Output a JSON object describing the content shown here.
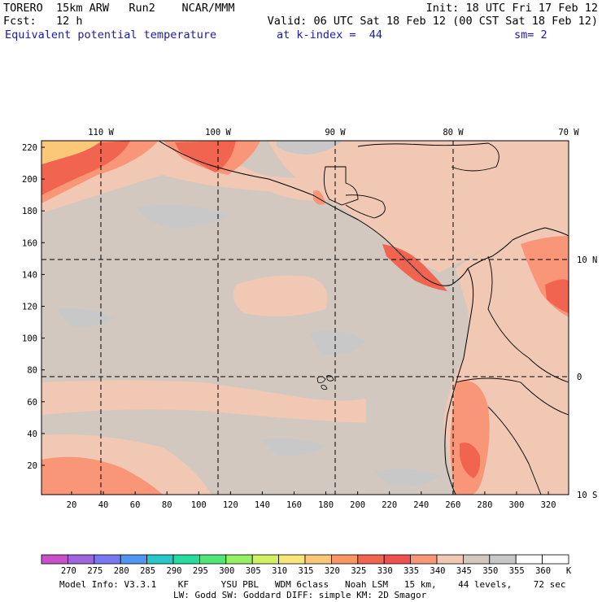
{
  "header": {
    "line1_left": "TORERO  15km ARW   Run2    NCAR/MMM",
    "line1_right": "Init: 18 UTC Fri 17 Feb 12",
    "line2_left": "Fcst:   12 h",
    "line2_right": "Valid: 06 UTC Sat 18 Feb 12 (00 CST Sat 18 Feb 12)",
    "field": "Equivalent potential temperature",
    "level": "at k-index =  44",
    "smoothing": "sm= 2"
  },
  "map": {
    "lon_labels": [
      "110 W",
      "100 W",
      "90 W",
      "80 W",
      "70 W"
    ],
    "lat_labels": [
      "10 N",
      "0",
      "10 S"
    ],
    "y_ticks": [
      "220",
      "200",
      "180",
      "160",
      "140",
      "120",
      "100",
      "80",
      "60",
      "40",
      "20"
    ],
    "x_ticks": [
      "20",
      "40",
      "60",
      "80",
      "100",
      "120",
      "140",
      "160",
      "180",
      "200",
      "220",
      "240",
      "260",
      "280",
      "300",
      "320"
    ]
  },
  "colorbar": {
    "labels": [
      "270",
      "275",
      "280",
      "285",
      "290",
      "295",
      "300",
      "305",
      "310",
      "315",
      "320",
      "325",
      "330",
      "335",
      "340",
      "345",
      "350",
      "355",
      "360"
    ],
    "unit": "K",
    "colors": [
      "#c850c8",
      "#a064dc",
      "#7878f0",
      "#5096f0",
      "#28c8c8",
      "#28dca0",
      "#50e678",
      "#96f064",
      "#d2f064",
      "#fae678",
      "#fac878",
      "#fa9664",
      "#f06450",
      "#f05050",
      "#fa9678",
      "#f0c8b4",
      "#d2c8c0",
      "#c8c8c8",
      "#ffffff",
      "#ffffff"
    ]
  },
  "footer": {
    "line1": "Model Info: V3.3.1    KF      YSU PBL   WDM 6class   Noah LSM   15 km,    44 levels,    72 sec",
    "line2": "LW: Godd SW: Goddard DIFF: simple KM: 2D Smagor"
  }
}
